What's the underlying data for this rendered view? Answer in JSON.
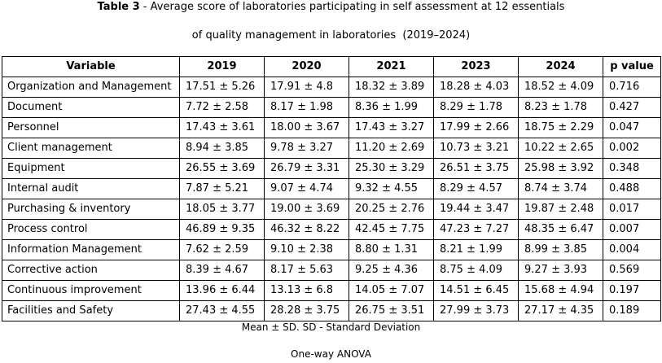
{
  "caption": {
    "label": "Table 3",
    "line1_rest": " - Average score of laboratories participating in self assessment at 12 essentials",
    "line2": "of quality management in laboratories  (2019–2024)"
  },
  "table": {
    "headers": [
      "Variable",
      "2019",
      "2020",
      "2021",
      "2023",
      "2024",
      "p value"
    ],
    "rows": [
      [
        "Organization and Management",
        "17.51 ± 5.26",
        "17.91 ± 4.8",
        "18.32 ± 3.89",
        "18.28 ± 4.03",
        "18.52 ± 4.09",
        "0.716"
      ],
      [
        "Document",
        "7.72 ± 2.58",
        "8.17 ± 1.98",
        "8.36 ± 1.99",
        "8.29 ± 1.78",
        "8.23 ± 1.78",
        "0.427"
      ],
      [
        "Personnel",
        "17.43 ± 3.61",
        "18.00 ± 3.67",
        "17.43 ± 3.27",
        "17.99 ± 2.66",
        "18.75 ± 2.29",
        "0.047"
      ],
      [
        "Client management",
        "8.94 ± 3.85",
        "9.78 ± 3.27",
        "11.20 ± 2.69",
        "10.73 ± 3.21",
        "10.22 ± 2.65",
        "0.002"
      ],
      [
        "Equipment",
        "26.55 ± 3.69",
        "26.79 ± 3.31",
        "25.30 ± 3.29",
        "26.51 ± 3.75",
        "25.98 ± 3.92",
        "0.348"
      ],
      [
        "Internal audit",
        "7.87 ± 5.21",
        "9.07 ± 4.74",
        "9.32 ± 4.55",
        "8.29 ± 4.57",
        "8.74 ± 3.74",
        "0.488"
      ],
      [
        "Purchasing & inventory",
        "18.05 ± 3.77",
        "19.00 ± 3.69",
        "20.25 ± 2.76",
        "19.44 ± 3.47",
        "19.87 ± 2.48",
        "0.017"
      ],
      [
        "Process control",
        "46.89 ± 9.35",
        "46.32 ± 8.22",
        "42.45 ± 7.75",
        "47.23 ± 7.27",
        "48.35 ± 6.47",
        "0.007"
      ],
      [
        "Information Management",
        "7.62 ± 2.59",
        "9.10 ± 2.38",
        "8.80 ± 1.31",
        "8.21 ± 1.99",
        "8.99 ± 3.85",
        "0.004"
      ],
      [
        "Corrective action",
        "8.39 ± 4.67",
        "8.17 ± 5.63",
        "9.25 ± 4.36",
        "8.75 ± 4.09",
        "9.27 ± 3.93",
        "0.569"
      ],
      [
        "Continuous improvement",
        "13.96 ± 6.44",
        "13.13 ± 6.8",
        "14.05 ± 7.07",
        "14.51 ± 6.45",
        "15.68 ± 4.94",
        "0.197"
      ],
      [
        "Facilities and Safety",
        "27.43 ± 4.55",
        "28.28 ± 3.75",
        "26.75 ± 3.51",
        "27.99 ± 3.73",
        "27.17 ± 4.35",
        "0.189"
      ]
    ]
  },
  "footnotes": {
    "line1": "Mean ± SD. SD - Standard Deviation",
    "line2": "One-way ANOVA"
  }
}
